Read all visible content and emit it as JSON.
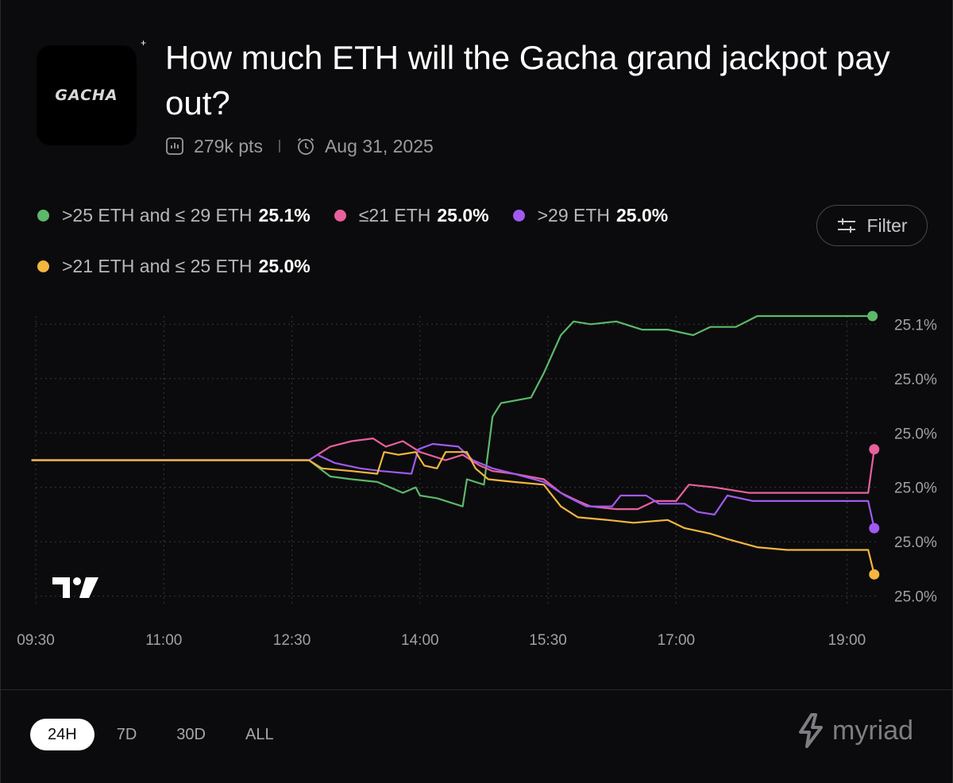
{
  "market": {
    "logo_text": "GACHA",
    "title": "How much ETH will the Gacha grand jackpot pay out?",
    "points": "279k pts",
    "end_date": "Aug 31, 2025"
  },
  "legend": [
    {
      "label": ">25 ETH and ≤ 29 ETH",
      "value": "25.1%",
      "color": "#5cb86a"
    },
    {
      "label": "≤21 ETH",
      "value": "25.0%",
      "color": "#e8609c"
    },
    {
      "label": ">29 ETH",
      "value": "25.0%",
      "color": "#a05af0"
    },
    {
      "label": ">21 ETH and ≤ 25 ETH",
      "value": "25.0%",
      "color": "#f3b63e"
    }
  ],
  "filter": {
    "label": "Filter"
  },
  "timeframes": [
    {
      "label": "24H",
      "active": true
    },
    {
      "label": "7D",
      "active": false
    },
    {
      "label": "30D",
      "active": false
    },
    {
      "label": "ALL",
      "active": false
    }
  ],
  "brand": {
    "name": "myriad"
  },
  "chart_data": {
    "type": "line",
    "title": "",
    "xlabel": "",
    "ylabel": "",
    "x_ticks": [
      "09:30",
      "11:00",
      "12:30",
      "14:00",
      "15:30",
      "17:00",
      "19:00"
    ],
    "x_tick_hours": [
      9.5,
      11,
      12.5,
      14,
      15.5,
      17,
      19
    ],
    "xlim": [
      9.5,
      19.35
    ],
    "y_tick_labels": [
      "25.1%",
      "25.0%",
      "25.0%",
      "25.0%",
      "25.0%",
      "25.0%"
    ],
    "y_tick_values": [
      25.05,
      25.03,
      25.01,
      24.99,
      24.97,
      24.95
    ],
    "ylim": [
      24.947,
      25.053
    ],
    "grid": true,
    "series": [
      {
        "name": ">25 ETH and ≤ 29 ETH",
        "color": "#5cb86a",
        "points": [
          [
            9.45,
            25.0
          ],
          [
            12.7,
            25.0
          ],
          [
            12.95,
            24.994
          ],
          [
            13.2,
            24.993
          ],
          [
            13.5,
            24.992
          ],
          [
            13.8,
            24.988
          ],
          [
            13.95,
            24.99
          ],
          [
            14.0,
            24.987
          ],
          [
            14.2,
            24.986
          ],
          [
            14.5,
            24.983
          ],
          [
            14.55,
            24.993
          ],
          [
            14.75,
            24.991
          ],
          [
            14.85,
            25.016
          ],
          [
            14.95,
            25.021
          ],
          [
            15.3,
            25.023
          ],
          [
            15.45,
            25.032
          ],
          [
            15.65,
            25.046
          ],
          [
            15.8,
            25.051
          ],
          [
            16.0,
            25.05
          ],
          [
            16.3,
            25.051
          ],
          [
            16.6,
            25.048
          ],
          [
            16.9,
            25.048
          ],
          [
            17.2,
            25.046
          ],
          [
            17.4,
            25.049
          ],
          [
            17.7,
            25.049
          ],
          [
            17.95,
            25.053
          ],
          [
            18.3,
            25.053
          ],
          [
            19.3,
            25.053
          ]
        ]
      },
      {
        "name": "≤21 ETH",
        "color": "#e8609c",
        "points": [
          [
            9.45,
            25.0
          ],
          [
            12.7,
            25.0
          ],
          [
            12.95,
            25.005
          ],
          [
            13.2,
            25.007
          ],
          [
            13.45,
            25.008
          ],
          [
            13.6,
            25.005
          ],
          [
            13.8,
            25.007
          ],
          [
            14.0,
            25.003
          ],
          [
            14.3,
            25.0
          ],
          [
            14.5,
            25.002
          ],
          [
            14.7,
            24.998
          ],
          [
            14.85,
            24.996
          ],
          [
            15.1,
            24.995
          ],
          [
            15.45,
            24.993
          ],
          [
            15.65,
            24.988
          ],
          [
            15.85,
            24.985
          ],
          [
            16.0,
            24.983
          ],
          [
            16.3,
            24.982
          ],
          [
            16.55,
            24.982
          ],
          [
            16.75,
            24.985
          ],
          [
            17.0,
            24.985
          ],
          [
            17.15,
            24.991
          ],
          [
            17.45,
            24.99
          ],
          [
            17.85,
            24.988
          ],
          [
            18.3,
            24.988
          ],
          [
            18.85,
            24.988
          ],
          [
            19.25,
            24.988
          ],
          [
            19.32,
            25.004
          ]
        ]
      },
      {
        "name": ">29 ETH",
        "color": "#a05af0",
        "points": [
          [
            9.45,
            25.0
          ],
          [
            12.7,
            25.0
          ],
          [
            12.8,
            25.002
          ],
          [
            13.0,
            24.999
          ],
          [
            13.3,
            24.997
          ],
          [
            13.55,
            24.996
          ],
          [
            13.9,
            24.995
          ],
          [
            13.98,
            25.004
          ],
          [
            14.15,
            25.006
          ],
          [
            14.45,
            25.005
          ],
          [
            14.62,
            25.0
          ],
          [
            14.85,
            24.997
          ],
          [
            15.1,
            24.995
          ],
          [
            15.45,
            24.992
          ],
          [
            15.7,
            24.987
          ],
          [
            15.95,
            24.983
          ],
          [
            16.25,
            24.983
          ],
          [
            16.35,
            24.987
          ],
          [
            16.65,
            24.987
          ],
          [
            16.8,
            24.984
          ],
          [
            17.1,
            24.984
          ],
          [
            17.25,
            24.981
          ],
          [
            17.45,
            24.98
          ],
          [
            17.6,
            24.987
          ],
          [
            17.9,
            24.985
          ],
          [
            18.3,
            24.985
          ],
          [
            19.25,
            24.985
          ],
          [
            19.32,
            24.975
          ]
        ]
      },
      {
        "name": ">21 ETH and ≤ 25 ETH",
        "color": "#f3b63e",
        "points": [
          [
            9.45,
            25.0
          ],
          [
            12.7,
            25.0
          ],
          [
            12.85,
            24.997
          ],
          [
            13.2,
            24.996
          ],
          [
            13.5,
            24.995
          ],
          [
            13.58,
            25.003
          ],
          [
            13.75,
            25.002
          ],
          [
            13.95,
            25.003
          ],
          [
            14.05,
            24.998
          ],
          [
            14.2,
            24.997
          ],
          [
            14.3,
            25.003
          ],
          [
            14.55,
            25.003
          ],
          [
            14.65,
            24.997
          ],
          [
            14.8,
            24.993
          ],
          [
            15.1,
            24.992
          ],
          [
            15.45,
            24.991
          ],
          [
            15.65,
            24.983
          ],
          [
            15.85,
            24.979
          ],
          [
            16.2,
            24.978
          ],
          [
            16.5,
            24.977
          ],
          [
            16.9,
            24.978
          ],
          [
            17.1,
            24.975
          ],
          [
            17.4,
            24.973
          ],
          [
            17.6,
            24.971
          ],
          [
            17.95,
            24.968
          ],
          [
            18.3,
            24.967
          ],
          [
            19.25,
            24.967
          ],
          [
            19.32,
            24.958
          ]
        ]
      }
    ]
  }
}
